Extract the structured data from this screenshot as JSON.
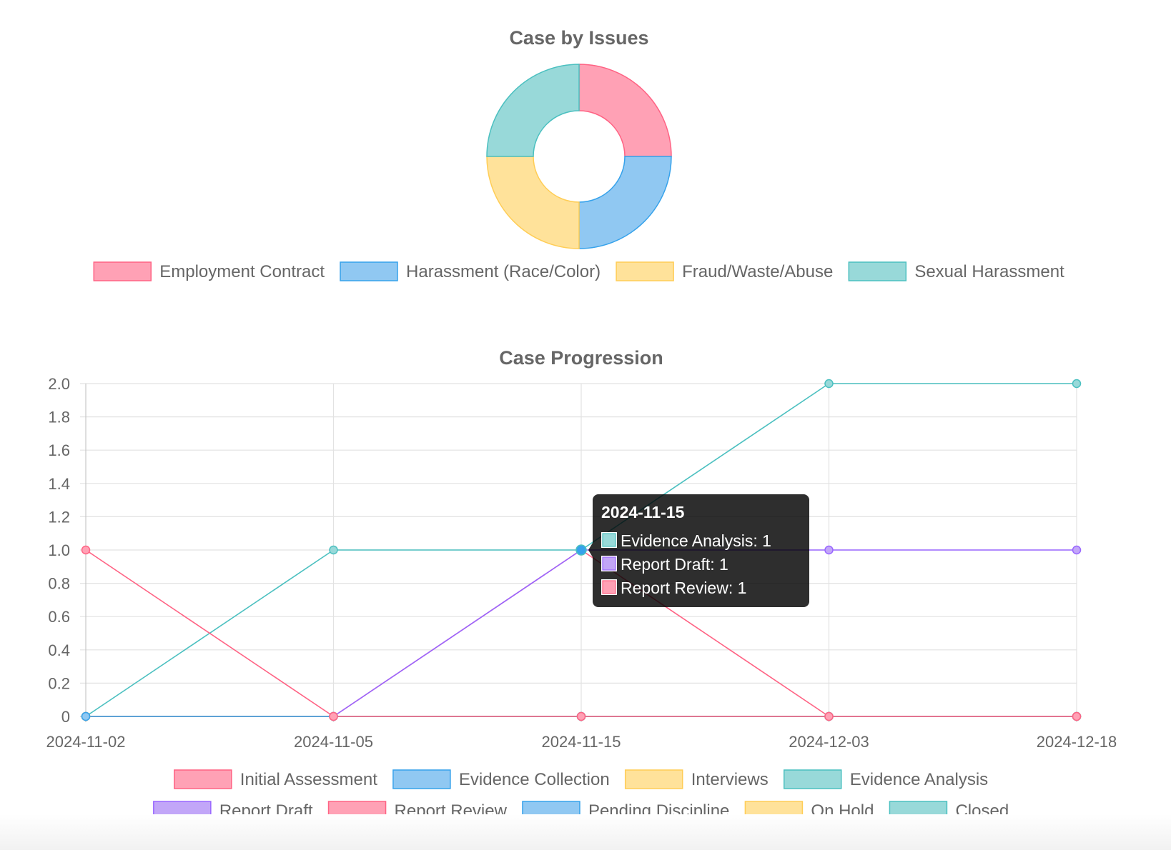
{
  "chart_data": [
    {
      "type": "pie",
      "variant": "doughnut",
      "title": "Case by Issues",
      "labels": [
        "Employment Contract",
        "Harassment (Race/Color)",
        "Fraud/Waste/Abuse",
        "Sexual Harassment"
      ],
      "values": [
        1,
        1,
        1,
        1
      ],
      "colors": [
        {
          "fill": "#ffa1b5",
          "stroke": "#ff6384"
        },
        {
          "fill": "#90c8f2",
          "stroke": "#36a2eb"
        },
        {
          "fill": "#ffe29a",
          "stroke": "#ffcd56"
        },
        {
          "fill": "#98d9d9",
          "stroke": "#4bc0c0"
        }
      ],
      "legend_position": "bottom"
    },
    {
      "type": "line",
      "title": "Case Progression",
      "categories": [
        "2024-11-02",
        "2024-11-05",
        "2024-11-15",
        "2024-12-03",
        "2024-12-18"
      ],
      "ylim": [
        0,
        2
      ],
      "yticks": [
        "0",
        "0.2",
        "0.4",
        "0.6",
        "0.8",
        "1.0",
        "1.2",
        "1.4",
        "1.6",
        "1.8",
        "2.0"
      ],
      "grid": true,
      "legend_position": "bottom",
      "series": [
        {
          "name": "Initial Assessment",
          "values": [
            1,
            0,
            0,
            0,
            0
          ],
          "fill": "#ffa1b5",
          "stroke": "#ff6384"
        },
        {
          "name": "Evidence Collection",
          "values": [
            0,
            0,
            0,
            0,
            0
          ],
          "fill": "#90c8f2",
          "stroke": "#36a2eb"
        },
        {
          "name": "Interviews",
          "values": [
            0,
            0,
            0,
            0,
            0
          ],
          "fill": "#ffe29a",
          "stroke": "#ffcd56"
        },
        {
          "name": "Evidence Analysis",
          "values": [
            0,
            1,
            1,
            2,
            2
          ],
          "fill": "#98d9d9",
          "stroke": "#4bc0c0"
        },
        {
          "name": "Report Draft",
          "values": [
            0,
            0,
            1,
            1,
            1
          ],
          "fill": "#c2a6f8",
          "stroke": "#9966ff"
        },
        {
          "name": "Report Review",
          "values": [
            0,
            0,
            1,
            0,
            0
          ],
          "fill": "#ffa1b5",
          "stroke": "#ff6384"
        },
        {
          "name": "Pending Discipline",
          "values": [
            0,
            0,
            0,
            0,
            0
          ],
          "fill": "#90c8f2",
          "stroke": "#36a2eb"
        },
        {
          "name": "On Hold",
          "values": [
            0,
            0,
            0,
            0,
            0
          ],
          "fill": "#ffe29a",
          "stroke": "#ffcd56"
        },
        {
          "name": "Closed",
          "values": [
            0,
            0,
            0,
            0,
            0
          ],
          "fill": "#98d9d9",
          "stroke": "#4bc0c0"
        }
      ],
      "tooltip": {
        "title": "2024-11-15",
        "items": [
          {
            "label": "Evidence Analysis: 1",
            "fill": "#98d9d9",
            "stroke": "#4bc0c0"
          },
          {
            "label": "Report Draft: 1",
            "fill": "#c2a6f8",
            "stroke": "#9966ff"
          },
          {
            "label": "Report Review: 1",
            "fill": "#ffa1b5",
            "stroke": "#ff6384"
          }
        ]
      }
    }
  ]
}
